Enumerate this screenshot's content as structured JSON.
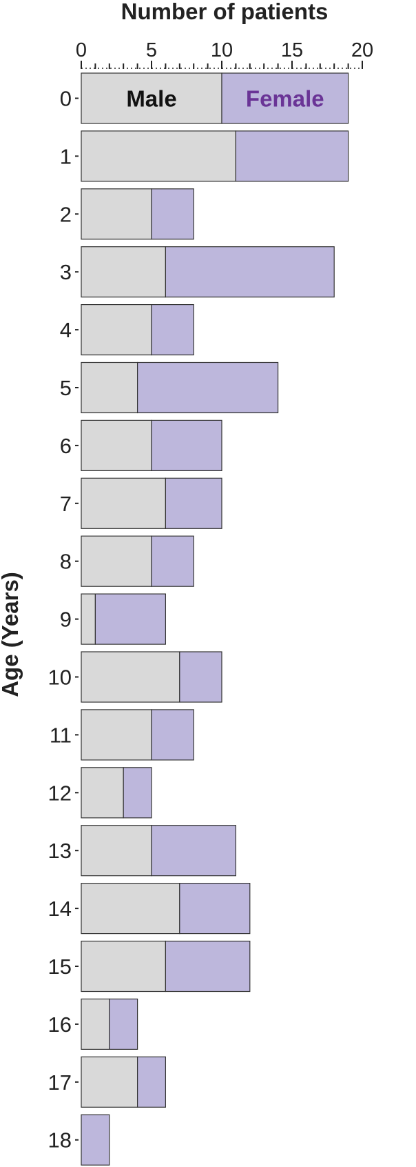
{
  "chart_data": {
    "type": "bar",
    "orientation": "horizontal",
    "stacked": true,
    "xlabel": "Number of patients",
    "ylabel": "Age (Years)",
    "xlim": [
      0,
      20
    ],
    "xticks": [
      "0",
      "5",
      "10",
      "15",
      "20"
    ],
    "x_axis_position": "top",
    "grid": false,
    "categories": [
      "0",
      "1",
      "2",
      "3",
      "4",
      "5",
      "6",
      "7",
      "8",
      "9",
      "10",
      "11",
      "12",
      "13",
      "14",
      "15",
      "16",
      "17",
      "18"
    ],
    "series": [
      {
        "name": "Male",
        "color": "#d9d9d9",
        "label_color": "#111111",
        "values": [
          10,
          11,
          5,
          6,
          5,
          4,
          5,
          6,
          5,
          1,
          7,
          5,
          3,
          5,
          7,
          6,
          2,
          4,
          0
        ]
      },
      {
        "name": "Female",
        "color": "#bdb7dc",
        "label_color": "#6a3496",
        "values": [
          9,
          8,
          3,
          12,
          3,
          10,
          5,
          4,
          3,
          5,
          3,
          3,
          2,
          6,
          5,
          6,
          2,
          2,
          2
        ]
      }
    ]
  }
}
